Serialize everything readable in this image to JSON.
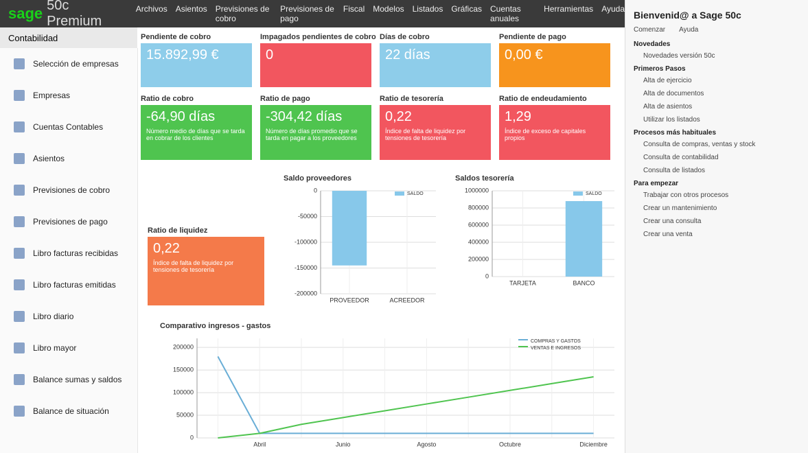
{
  "app": {
    "brand": "sage",
    "product": "50c Premium"
  },
  "menu": [
    "Archivos",
    "Asientos",
    "Previsiones de cobro",
    "Previsiones de pago",
    "Fiscal",
    "Modelos",
    "Listados",
    "Gráficas",
    "Cuentas anuales",
    "Herramientas",
    "Ayuda"
  ],
  "module": "Contabilidad",
  "sidebar": [
    "Selección de empresas",
    "Empresas",
    "Cuentas Contables",
    "Asientos",
    "Previsiones de cobro",
    "Previsiones de pago",
    "Libro facturas recibidas",
    "Libro facturas emitidas",
    "Libro diario",
    "Libro mayor",
    "Balance sumas y saldos",
    "Balance de situación"
  ],
  "tiles": [
    {
      "title": "Pendiente de cobro",
      "value": "15.892,99 €",
      "color": "#8ecdea"
    },
    {
      "title": "Impagados pendientes de cobro",
      "value": "0",
      "color": "#f2565f"
    },
    {
      "title": "Días de cobro",
      "value": "22 días",
      "color": "#8ecdea"
    },
    {
      "title": "Pendiente de pago",
      "value": "0,00 €",
      "color": "#f7941d"
    },
    {
      "title": "Ratio de cobro",
      "value": "-64,90 días",
      "description": "Número medio de días que se tarda en cobrar de los clientes",
      "color": "#4fc44f"
    },
    {
      "title": "Ratio de pago",
      "value": "-304,42 días",
      "description": "Número de días promedio que se tarda en pagar a los proveedores",
      "color": "#4fc44f"
    },
    {
      "title": "Ratio de tesorería",
      "value": "0,22",
      "description": "Índice de falta de liquidez por tensiones de tesorería",
      "color": "#f2565f"
    },
    {
      "title": "Ratio de endeudamiento",
      "value": "1,29",
      "description": "Índice de exceso de capitales propios",
      "color": "#f2565f"
    },
    {
      "title": "Ratio de liquidez",
      "value": "0,22",
      "description": "Índice de falta de liquidez por tensiones de tesorería",
      "color": "#f47a4a"
    }
  ],
  "charts": [
    {
      "type": "bar",
      "title": "Saldo proveedores",
      "categories": [
        "PROVEEDOR",
        "ACREEDOR"
      ],
      "series": [
        {
          "name": "SALDO",
          "color": "#87c8ea",
          "values": [
            -145000,
            0
          ]
        }
      ],
      "ylim": [
        -200000,
        0
      ],
      "yticks": [
        0,
        -50000,
        -100000,
        -150000,
        -200000
      ],
      "grid": true
    },
    {
      "type": "bar",
      "title": "Saldos tesorería",
      "categories": [
        "TARJETA",
        "BANCO"
      ],
      "series": [
        {
          "name": "SALDO",
          "color": "#87c8ea",
          "values": [
            0,
            880000
          ]
        }
      ],
      "ylim": [
        0,
        1000000
      ],
      "yticks": [
        0,
        200000,
        400000,
        600000,
        800000,
        1000000
      ],
      "grid": true
    },
    {
      "type": "line",
      "title": "Comparativo ingresos - gastos",
      "categories": [
        null,
        "Abril",
        null,
        "Junio",
        null,
        "Agosto",
        null,
        "Octubre",
        null,
        "Diciembre"
      ],
      "series": [
        {
          "name": "COMPRAS Y GASTOS",
          "color": "#6aaed6",
          "values": [
            180000,
            10000,
            10000,
            10000,
            10000,
            10000,
            10000,
            10000,
            10000,
            10000
          ]
        },
        {
          "name": "VENTAS E INGRESOS",
          "color": "#4fc44f",
          "values": [
            0,
            10000,
            30000,
            45000,
            60000,
            75000,
            90000,
            105000,
            120000,
            135000
          ]
        }
      ],
      "ylim": [
        0,
        220000
      ],
      "yticks": [
        0,
        50000,
        100000,
        150000,
        200000
      ],
      "grid": true
    }
  ],
  "panel": {
    "title": "Bienvenid@ a Sage 50c",
    "tabs": [
      "Comenzar",
      "Ayuda"
    ],
    "sections": [
      {
        "title": "Novedades",
        "items": [
          "Novedades versión 50c"
        ]
      },
      {
        "title": "Primeros Pasos",
        "items": [
          "Alta de ejercicio",
          "Alta de documentos",
          "Alta de asientos",
          "Utilizar los listados"
        ]
      },
      {
        "title": "Procesos más habituales",
        "items": [
          "Consulta de compras, ventas y stock",
          "Consulta de contabilidad",
          "Consulta de listados"
        ]
      },
      {
        "title": "Para empezar",
        "items": [
          "Trabajar con otros procesos",
          "Crear un mantenimiento",
          "Crear una consulta",
          "Crear una venta"
        ]
      }
    ]
  }
}
